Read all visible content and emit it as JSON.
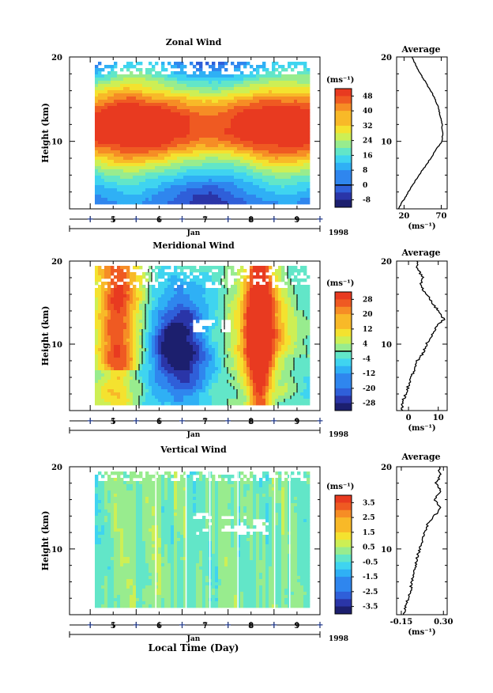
{
  "figure": {
    "x_axis_title": "Local Time (Day)",
    "month_label": "Jan",
    "year_label": "1998",
    "y_axis_title": "Height (km)",
    "unit_label": "(ms⁻¹)",
    "average_title": "Average"
  },
  "chart_data": [
    {
      "type": "heatmap",
      "title": "Zonal Wind",
      "x_ticks": [
        "5",
        "6",
        "7",
        "8",
        "9"
      ],
      "y_ticks": [
        "20",
        "10"
      ],
      "ylim": [
        2,
        20
      ],
      "colorbar_ticks": [
        "48",
        "40",
        "32",
        "24",
        "16",
        "8",
        "0",
        "-8"
      ],
      "colorbar_range": [
        -12,
        52
      ],
      "colorbar_zero_line": 0,
      "average_profile": {
        "x_ticks": [
          "20",
          "70"
        ],
        "xlim": [
          10,
          78
        ],
        "height": [
          2,
          3,
          4,
          5,
          6,
          7,
          8,
          9,
          10,
          11,
          12,
          13,
          14,
          15,
          16,
          17,
          18,
          19,
          20
        ],
        "value": [
          12,
          19,
          26,
          33,
          40,
          48,
          56,
          63,
          71,
          72,
          71,
          69,
          66,
          62,
          56,
          49,
          42,
          36,
          31
        ]
      }
    },
    {
      "type": "heatmap",
      "title": "Meridional Wind",
      "x_ticks": [
        "5",
        "6",
        "7",
        "8",
        "9"
      ],
      "y_ticks": [
        "20",
        "10"
      ],
      "ylim": [
        2,
        20
      ],
      "colorbar_ticks": [
        "28",
        "20",
        "12",
        "4",
        "-4",
        "-12",
        "-20",
        "-28"
      ],
      "colorbar_range": [
        -32,
        32
      ],
      "colorbar_zero_line": 0,
      "average_profile": {
        "x_ticks": [
          "0",
          "10"
        ],
        "xlim": [
          -4,
          13
        ],
        "height": [
          2,
          3,
          4,
          5,
          6,
          7,
          8,
          9,
          10,
          11,
          12,
          13,
          14,
          15,
          16,
          17,
          18,
          19,
          20
        ],
        "value": [
          -2,
          -2,
          -1,
          0,
          1,
          2,
          3,
          5,
          6,
          8,
          9,
          12,
          10,
          8,
          6,
          4,
          5,
          3,
          3
        ]
      }
    },
    {
      "type": "heatmap",
      "title": "Vertical Wind",
      "x_ticks": [
        "5",
        "6",
        "7",
        "8",
        "9"
      ],
      "y_ticks": [
        "20",
        "10"
      ],
      "ylim": [
        2,
        20
      ],
      "colorbar_ticks": [
        "3.5",
        "2.5",
        "1.5",
        "0.5",
        "-0.5",
        "-1.5",
        "-2.5",
        "-3.5"
      ],
      "colorbar_range": [
        -4,
        4
      ],
      "average_profile": {
        "x_ticks": [
          "-0.15",
          "0.30"
        ],
        "xlim": [
          -0.2,
          0.34
        ],
        "height": [
          2,
          3,
          4,
          5,
          6,
          7,
          8,
          9,
          10,
          11,
          12,
          13,
          14,
          15,
          16,
          17,
          18,
          19,
          20
        ],
        "value": [
          -0.12,
          -0.1,
          -0.08,
          -0.05,
          -0.04,
          -0.02,
          0.0,
          0.02,
          0.05,
          0.08,
          0.1,
          0.13,
          0.2,
          0.28,
          0.2,
          0.28,
          0.22,
          0.27,
          0.25
        ]
      }
    }
  ]
}
